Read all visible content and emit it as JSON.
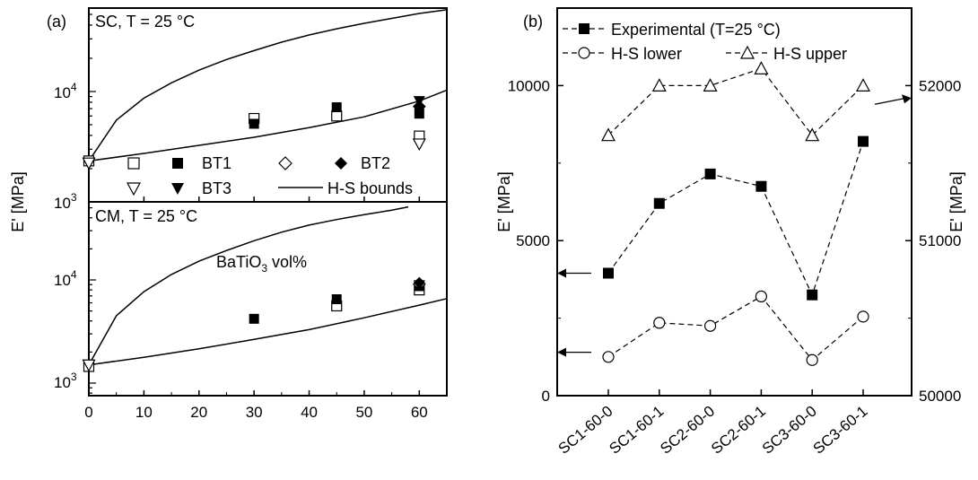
{
  "chart_data": [
    {
      "panel_label": "(a)",
      "type": "scatter",
      "xlim": [
        0,
        65
      ],
      "x_ticks": [
        "0",
        "10",
        "20",
        "30",
        "40",
        "50",
        "60"
      ],
      "xlabel": "BaTiO3 vol%",
      "xlabel_main": "BaTiO",
      "xlabel_sub": "3",
      "xlabel_tail": " vol%",
      "ylabel": "E' [MPa]",
      "legend": [
        {
          "name": "",
          "marker": "square-open"
        },
        {
          "name": "BT1",
          "marker": "square-filled"
        },
        {
          "name": "",
          "marker": "diamond-open"
        },
        {
          "name": "BT2",
          "marker": "diamond-filled"
        },
        {
          "name": "",
          "marker": "triangle-down-open"
        },
        {
          "name": "BT3",
          "marker": "triangle-down-filled"
        },
        {
          "name": "H-S bounds",
          "marker": "line"
        }
      ],
      "subplots": [
        {
          "title": "SC,  T = 25 °C",
          "yscale": "log",
          "ylim": [
            1000,
            50000
          ],
          "y_tick_labels": {
            "major_10_3": "10",
            "major_10_3_exp": "3",
            "major_10_4": "10",
            "major_10_4_exp": "4"
          },
          "series": [
            {
              "name": "",
              "marker": "square-open",
              "points": [
                [
                  0,
                  2350
                ],
                [
                  30,
                  5700
                ],
                [
                  45,
                  6000
                ],
                [
                  60,
                  3950
                ]
              ]
            },
            {
              "name": "BT1",
              "marker": "square-filled",
              "points": [
                [
                  30,
                  5100
                ],
                [
                  45,
                  7200
                ],
                [
                  60,
                  6300
                ]
              ]
            },
            {
              "name": "",
              "marker": "diamond-open",
              "points": [
                [
                  60,
                  7300
                ]
              ]
            },
            {
              "name": "BT2",
              "marker": "diamond-filled",
              "points": [
                [
                  60,
                  7400
                ]
              ]
            },
            {
              "name": "",
              "marker": "triangle-down-open",
              "points": [
                [
                  0,
                  2250
                ],
                [
                  60,
                  3350
                ]
              ]
            },
            {
              "name": "BT3",
              "marker": "triangle-down-filled",
              "points": [
                [
                  60,
                  8200
                ]
              ]
            }
          ],
          "hs_upper": [
            [
              0,
              2350
            ],
            [
              5,
              5500
            ],
            [
              10,
              8700
            ],
            [
              15,
              12000
            ],
            [
              20,
              15600
            ],
            [
              25,
              19500
            ],
            [
              30,
              23500
            ],
            [
              35,
              28000
            ],
            [
              40,
              32500
            ],
            [
              45,
              37000
            ],
            [
              50,
              41500
            ],
            [
              55,
              46000
            ],
            [
              60,
              51000
            ],
            [
              65,
              55000
            ]
          ],
          "hs_lower": [
            [
              0,
              2350
            ],
            [
              10,
              2750
            ],
            [
              20,
              3250
            ],
            [
              30,
              3850
            ],
            [
              40,
              4700
            ],
            [
              50,
              5900
            ],
            [
              60,
              8200
            ],
            [
              65,
              10300
            ]
          ]
        },
        {
          "title": "CM,  T = 25 °C",
          "yscale": "log",
          "ylim": [
            800,
            50000
          ],
          "y_tick_labels": {
            "major_10_3": "10",
            "major_10_3_exp": "3",
            "major_10_4": "10",
            "major_10_4_exp": "4"
          },
          "series": [
            {
              "name": "",
              "marker": "square-open",
              "points": [
                [
                  0,
                  1450
                ],
                [
                  45,
                  5600
                ],
                [
                  60,
                  8000
                ]
              ]
            },
            {
              "name": "BT1",
              "marker": "square-filled",
              "points": [
                [
                  30,
                  4200
                ],
                [
                  45,
                  6500
                ],
                [
                  60,
                  8700
                ]
              ]
            },
            {
              "name": "",
              "marker": "diamond-open",
              "points": [
                [
                  60,
                  9100
                ]
              ]
            },
            {
              "name": "BT2",
              "marker": "diamond-filled",
              "points": [
                [
                  60,
                  9400
                ]
              ]
            },
            {
              "name": "",
              "marker": "triangle-down-open",
              "points": [
                [
                  0,
                  1500
                ]
              ]
            },
            {
              "name": "BT3",
              "marker": "triangle-down-filled",
              "points": [
                [
                  60,
                  8900
                ]
              ]
            }
          ],
          "hs_upper": [
            [
              0,
              1500
            ],
            [
              5,
              4500
            ],
            [
              10,
              7700
            ],
            [
              15,
              11300
            ],
            [
              20,
              15200
            ],
            [
              25,
              19300
            ],
            [
              30,
              24000
            ],
            [
              35,
              29000
            ],
            [
              40,
              34000
            ],
            [
              45,
              38500
            ],
            [
              50,
              43000
            ],
            [
              55,
              47500
            ],
            [
              58,
              51000
            ]
          ],
          "hs_lower": [
            [
              0,
              1500
            ],
            [
              10,
              1780
            ],
            [
              20,
              2150
            ],
            [
              30,
              2650
            ],
            [
              40,
              3300
            ],
            [
              50,
              4300
            ],
            [
              60,
              5700
            ],
            [
              65,
              6600
            ]
          ]
        }
      ]
    },
    {
      "panel_label": "(b)",
      "type": "line",
      "categories": [
        "SC1-60-0",
        "SC1-60-1",
        "SC2-60-0",
        "SC2-60-1",
        "SC3-60-0",
        "SC3-60-1"
      ],
      "ylabel_left": "E' [MPa]",
      "ylabel_right": "E' [MPa]",
      "ylim_left": [
        0,
        12500
      ],
      "y_ticks_left": [
        0,
        5000,
        10000
      ],
      "ylim_right": [
        50000,
        52500
      ],
      "y_ticks_right": [
        50000,
        51000,
        52000
      ],
      "series": [
        {
          "name": "Experimental (T=25 °C)",
          "marker": "square-filled",
          "axis": "left",
          "values": [
            3950,
            6200,
            7150,
            6750,
            3250,
            8200
          ]
        },
        {
          "name": "H-S lower",
          "marker": "circle-open",
          "axis": "left",
          "values": [
            1250,
            2350,
            2250,
            3200,
            1150,
            2550
          ]
        },
        {
          "name": "H-S upper",
          "marker": "triangle-up-open",
          "axis": "right",
          "values": [
            51680,
            52000,
            52000,
            52110,
            51680,
            52000
          ]
        }
      ]
    }
  ]
}
